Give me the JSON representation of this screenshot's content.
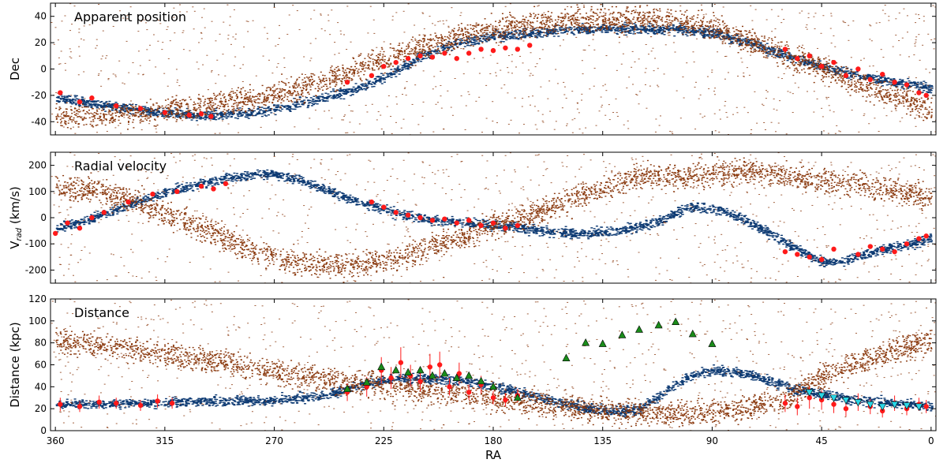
{
  "chart_data": [
    {
      "type": "scatter",
      "title": "Apparent position",
      "xlabel": "",
      "ylabel": "Dec",
      "xlim": [
        362,
        -2
      ],
      "ylim": [
        -50,
        50
      ],
      "x_ticks": [
        360,
        315,
        270,
        225,
        180,
        135,
        90,
        45,
        0
      ],
      "y_ticks": [
        -40,
        -20,
        0,
        20,
        40
      ],
      "series": [
        {
          "name": "model leading/trailing stream (blue)",
          "color": "#0d3a73",
          "x": [
            360,
            340,
            320,
            300,
            280,
            265,
            250,
            235,
            222,
            210,
            195,
            180,
            165,
            150,
            135,
            120,
            105,
            90,
            75,
            60,
            45,
            30,
            15,
            0
          ],
          "y": [
            -22,
            -27,
            -32,
            -35,
            -33,
            -28,
            -22,
            -14,
            -3,
            10,
            20,
            25,
            27,
            30,
            31,
            31,
            30,
            28,
            20,
            10,
            2,
            -5,
            -10,
            -14
          ]
        },
        {
          "name": "older stripped debris (brown)",
          "color": "#8b3a0f",
          "x": [
            360,
            335,
            310,
            285,
            262,
            240,
            218,
            195,
            170,
            145,
            120,
            105,
            90,
            70,
            45,
            20,
            0
          ],
          "y": [
            -36,
            -35,
            -30,
            -24,
            -16,
            -2,
            12,
            25,
            34,
            38,
            38,
            37,
            32,
            18,
            0,
            -18,
            -30
          ]
        },
        {
          "name": "observed stars (red)",
          "color": "#ff1a1a",
          "x": [
            358,
            350,
            345,
            335,
            325,
            315,
            305,
            300,
            296,
            240,
            230,
            225,
            220,
            215,
            210,
            205,
            200,
            195,
            190,
            185,
            180,
            175,
            170,
            165,
            60,
            55,
            50,
            45,
            40,
            35,
            30,
            25,
            20,
            15,
            10,
            5,
            2
          ],
          "y": [
            -18,
            -25,
            -22,
            -28,
            -30,
            -33,
            -35,
            -34,
            -36,
            -10,
            -5,
            2,
            5,
            8,
            10,
            9,
            12,
            8,
            12,
            15,
            14,
            16,
            15,
            18,
            15,
            8,
            10,
            2,
            5,
            -5,
            0,
            -8,
            -4,
            -10,
            -12,
            -18,
            -20
          ]
        }
      ]
    },
    {
      "type": "scatter",
      "title": "Radial velocity",
      "xlabel": "",
      "ylabel": "V_rad (km/s)",
      "ylabel_main": "V",
      "ylabel_sub": "rad",
      "ylabel_rest": " (km/s)",
      "xlim": [
        362,
        -2
      ],
      "ylim": [
        -250,
        250
      ],
      "x_ticks": [
        360,
        315,
        270,
        225,
        180,
        135,
        90,
        45,
        0
      ],
      "y_ticks": [
        -200,
        -100,
        0,
        100,
        200
      ],
      "series": [
        {
          "name": "model stream (blue)",
          "color": "#0d3a73",
          "x": [
            360,
            345,
            330,
            315,
            300,
            285,
            275,
            265,
            250,
            235,
            220,
            205,
            190,
            175,
            160,
            145,
            130,
            115,
            100,
            85,
            70,
            55,
            45,
            35,
            25,
            15,
            5,
            0
          ],
          "y": [
            -40,
            0,
            50,
            100,
            130,
            160,
            170,
            160,
            110,
            60,
            20,
            -10,
            -20,
            -30,
            -50,
            -60,
            -50,
            -20,
            40,
            30,
            -40,
            -120,
            -170,
            -160,
            -130,
            -110,
            -90,
            -75
          ]
        },
        {
          "name": "older stripped debris (brown)",
          "color": "#8b3a0f",
          "x": [
            360,
            340,
            320,
            300,
            280,
            260,
            240,
            220,
            200,
            180,
            160,
            140,
            120,
            100,
            80,
            60,
            40,
            20,
            0
          ],
          "y": [
            120,
            100,
            40,
            -40,
            -120,
            -170,
            -180,
            -150,
            -90,
            -30,
            30,
            100,
            160,
            160,
            180,
            160,
            140,
            110,
            80
          ]
        },
        {
          "name": "observed stars (red)",
          "color": "#ff1a1a",
          "x": [
            360,
            355,
            350,
            345,
            340,
            330,
            320,
            310,
            300,
            295,
            290,
            230,
            225,
            220,
            215,
            210,
            205,
            200,
            195,
            190,
            185,
            180,
            175,
            170,
            60,
            55,
            50,
            45,
            40,
            30,
            25,
            20,
            15,
            10,
            5,
            2
          ],
          "y": [
            -60,
            -20,
            -40,
            0,
            20,
            60,
            90,
            100,
            120,
            110,
            130,
            60,
            40,
            20,
            10,
            0,
            -10,
            -5,
            -20,
            -10,
            -30,
            -20,
            -40,
            -30,
            -130,
            -140,
            -150,
            -160,
            -120,
            -140,
            -110,
            -120,
            -130,
            -100,
            -80,
            -70
          ]
        }
      ]
    },
    {
      "type": "scatter",
      "title": "Distance",
      "xlabel": "RA",
      "ylabel": "Distance (kpc)",
      "xlim": [
        362,
        -2
      ],
      "ylim": [
        0,
        120
      ],
      "x_ticks": [
        360,
        315,
        270,
        225,
        180,
        135,
        90,
        45,
        0
      ],
      "y_ticks": [
        0,
        20,
        40,
        60,
        80,
        100,
        120
      ],
      "series": [
        {
          "name": "model stream (blue)",
          "color": "#0d3a73",
          "x": [
            360,
            330,
            300,
            270,
            250,
            235,
            220,
            205,
            190,
            175,
            160,
            145,
            130,
            120,
            110,
            100,
            90,
            80,
            70,
            60,
            45,
            30,
            15,
            0
          ],
          "y": [
            24,
            25,
            27,
            28,
            32,
            42,
            48,
            48,
            45,
            38,
            30,
            22,
            18,
            20,
            35,
            50,
            55,
            54,
            48,
            40,
            33,
            28,
            25,
            23
          ]
        },
        {
          "name": "older stripped debris (brown)",
          "color": "#8b3a0f",
          "x": [
            360,
            340,
            320,
            300,
            280,
            260,
            240,
            220,
            200,
            180,
            160,
            140,
            120,
            100,
            80,
            60,
            40,
            20,
            0
          ],
          "y": [
            82,
            78,
            72,
            65,
            58,
            50,
            45,
            40,
            35,
            30,
            25,
            20,
            18,
            16,
            20,
            30,
            55,
            70,
            82
          ]
        },
        {
          "name": "observed stars (red, with error bars)",
          "color": "#ff1a1a",
          "x": [
            358,
            350,
            342,
            335,
            325,
            318,
            312,
            240,
            232,
            226,
            222,
            218,
            214,
            210,
            206,
            202,
            198,
            194,
            190,
            185,
            180,
            175,
            170,
            60,
            55,
            50,
            45,
            40,
            35,
            30,
            25,
            20,
            15,
            10,
            5,
            2
          ],
          "y": [
            24,
            22,
            26,
            25,
            23,
            27,
            25,
            35,
            40,
            55,
            48,
            62,
            50,
            45,
            58,
            60,
            40,
            52,
            35,
            42,
            30,
            28,
            32,
            25,
            22,
            30,
            28,
            24,
            20,
            26,
            22,
            18,
            25,
            20,
            24,
            22
          ],
          "err": [
            6,
            5,
            6,
            5,
            5,
            6,
            5,
            8,
            9,
            12,
            10,
            14,
            10,
            9,
            12,
            12,
            8,
            10,
            7,
            8,
            6,
            6,
            6,
            8,
            8,
            10,
            9,
            8,
            7,
            8,
            7,
            6,
            7,
            6,
            6,
            6
          ]
        },
        {
          "name": "green triangles",
          "color": "#1a8c1a",
          "marker": "triangle-up",
          "x": [
            240,
            232,
            226,
            220,
            215,
            210,
            205,
            200,
            195,
            190,
            185,
            180,
            170,
            150,
            142,
            135,
            127,
            120,
            112,
            105,
            98,
            90
          ],
          "y": [
            38,
            44,
            58,
            55,
            53,
            55,
            50,
            52,
            48,
            50,
            45,
            40,
            30,
            66,
            80,
            79,
            87,
            92,
            96,
            99,
            88,
            79
          ]
        },
        {
          "name": "cyan triangles",
          "color": "#29d6e6",
          "marker": "triangle-down",
          "x": [
            50,
            45,
            40,
            35,
            30,
            25,
            20,
            15,
            10,
            5
          ],
          "y": [
            35,
            32,
            30,
            28,
            26,
            24,
            22,
            24,
            23,
            22
          ]
        }
      ]
    }
  ]
}
